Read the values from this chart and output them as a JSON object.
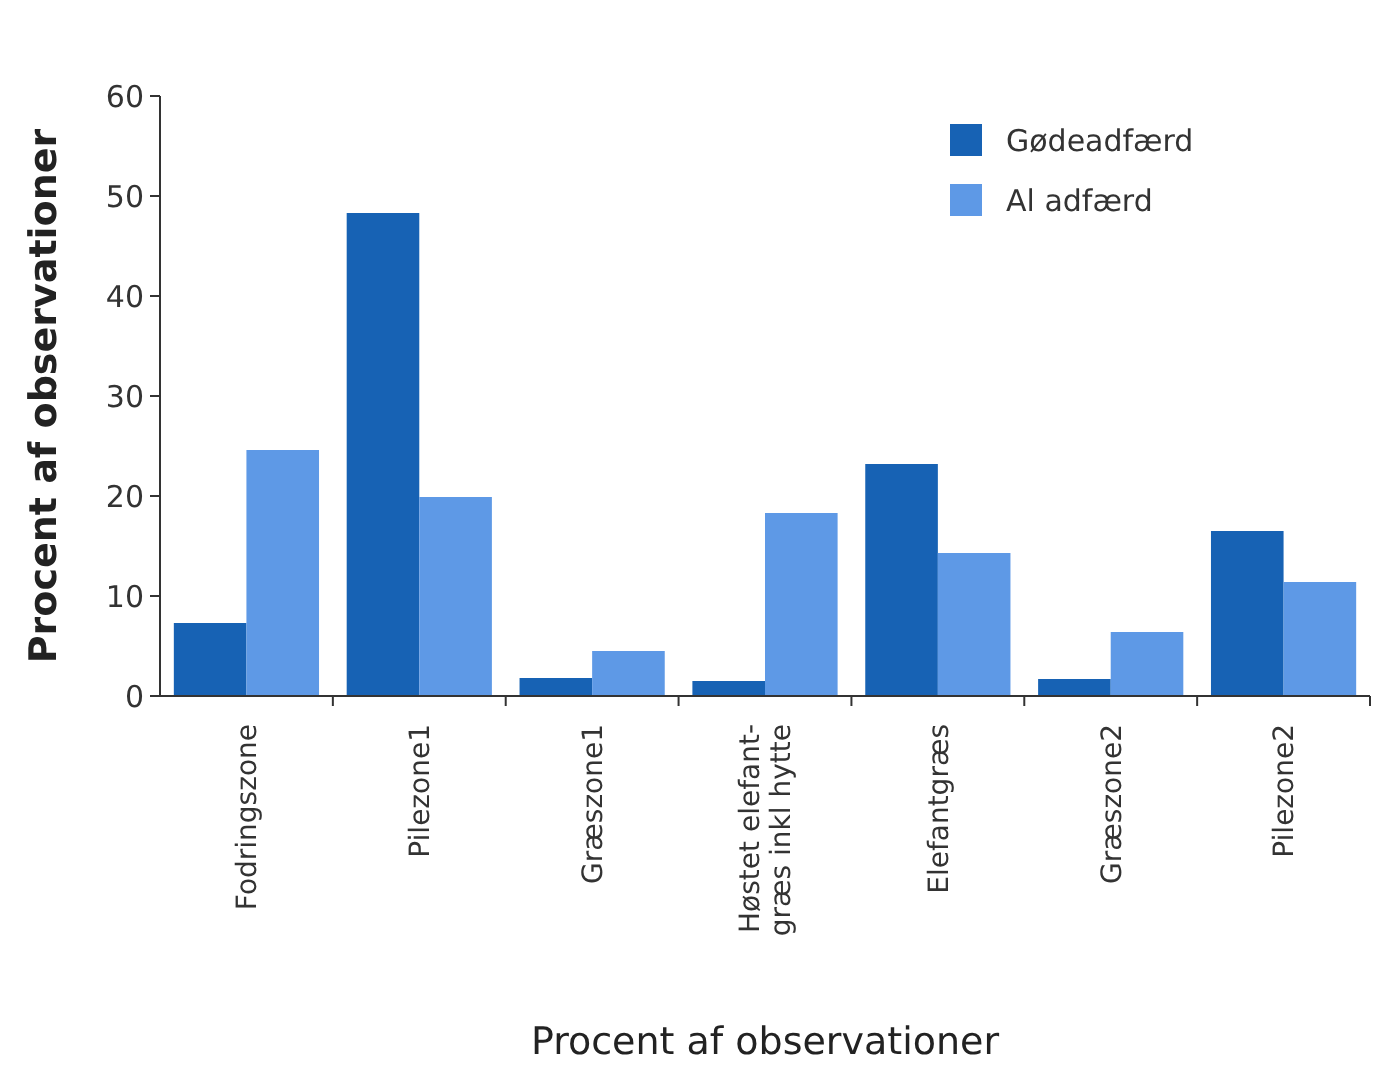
{
  "chart_data": {
    "type": "bar",
    "xlabel": "Procent af observationer",
    "ylabel": "Procent af observationer",
    "categories": [
      "Fodringszone",
      "Pilezone1",
      "Græszone1",
      "Høstet elefant-\ngræs inkl hytte",
      "Elefantgræs",
      "Græszone2",
      "Pilezone2"
    ],
    "series": [
      {
        "name": "Gødeadfærd",
        "color": "#1762b4",
        "values": [
          7.3,
          48.3,
          1.8,
          1.5,
          23.2,
          1.7,
          16.5
        ]
      },
      {
        "name": "Al adfærd",
        "color": "#5e99e6",
        "values": [
          24.6,
          19.9,
          4.5,
          18.3,
          14.3,
          6.4,
          11.4
        ]
      }
    ],
    "ylim": [
      0,
      60
    ],
    "yticks": [
      0,
      10,
      20,
      30,
      40,
      50,
      60
    ],
    "grid": false,
    "legend": "top right"
  }
}
